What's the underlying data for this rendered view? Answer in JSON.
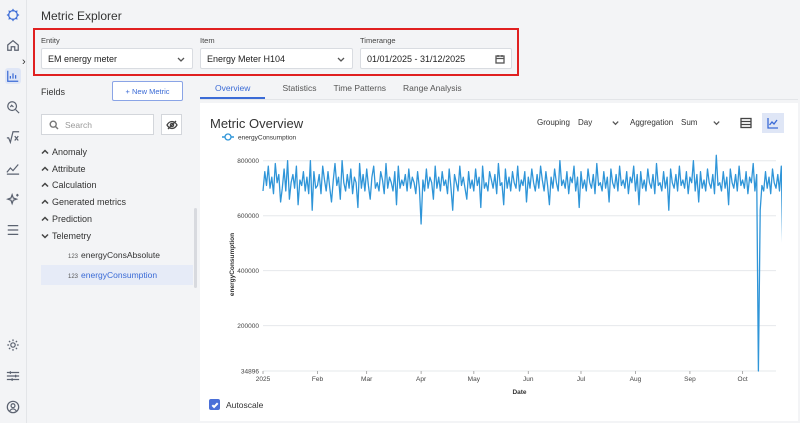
{
  "app": {
    "title": "Metric Explorer"
  },
  "rail": {
    "icons": [
      "logo-icon",
      "home-icon",
      "chart-icon",
      "search-chart-icon",
      "sqrt-icon",
      "trend-icon",
      "sparkle-icon",
      "menu-icon",
      "gear-icon",
      "sliders-icon",
      "user-icon"
    ]
  },
  "selectors": {
    "entity": {
      "label": "Entity",
      "value": "EM energy meter"
    },
    "item": {
      "label": "Item",
      "value": "Energy Meter H104"
    },
    "timerange": {
      "label": "Timerange",
      "value": "01/01/2025 - 31/12/2025"
    }
  },
  "fields": {
    "label": "Fields",
    "new_metric": "+ New Metric",
    "search_placeholder": "Search",
    "groups": [
      {
        "label": "Anomaly",
        "expanded": false
      },
      {
        "label": "Attribute",
        "expanded": false
      },
      {
        "label": "Calculation",
        "expanded": false
      },
      {
        "label": "Generated metrics",
        "expanded": false
      },
      {
        "label": "Prediction",
        "expanded": false
      },
      {
        "label": "Telemetry",
        "expanded": true
      }
    ],
    "telemetry_items": [
      {
        "type": "123",
        "label": "energyConsAbsolute",
        "selected": false
      },
      {
        "type": "123",
        "label": "energyConsumption",
        "selected": true
      }
    ]
  },
  "tabs": [
    {
      "label": "Overview",
      "active": true
    },
    {
      "label": "Statistics",
      "active": false
    },
    {
      "label": "Time Patterns",
      "active": false
    },
    {
      "label": "Range Analysis",
      "active": false
    }
  ],
  "chart_panel": {
    "title": "Metric Overview",
    "grouping_label": "Grouping",
    "grouping_value": "Day",
    "aggregation_label": "Aggregation",
    "aggregation_value": "Sum",
    "autoscale_label": "Autoscale",
    "autoscale_checked": true
  },
  "chart_data": {
    "type": "line",
    "title": "",
    "xlabel": "Date",
    "ylabel": "energyConsumption",
    "legend": [
      "energyConsumption"
    ],
    "legend_position": "top-left",
    "series_color": "#2f95d8",
    "x_ticks": [
      "2025",
      "Feb",
      "Mar",
      "Apr",
      "May",
      "Jun",
      "Jul",
      "Aug",
      "Sep",
      "Oct"
    ],
    "y_ticks": [
      "800000",
      "600000",
      "400000",
      "200000",
      "34896"
    ],
    "ylim": [
      34896,
      810000
    ],
    "x_range": [
      "2025-01-01",
      "2025-10-20"
    ],
    "grid": true,
    "series": [
      {
        "name": "energyConsumption",
        "daily_values_start": "2025-01-01",
        "values": [
          690000,
          760000,
          710000,
          780000,
          700000,
          740000,
          680000,
          790000,
          720000,
          750000,
          650000,
          700000,
          770000,
          690000,
          800000,
          660000,
          720000,
          750000,
          700000,
          780000,
          640000,
          730000,
          710000,
          760000,
          690000,
          740000,
          680000,
          800000,
          620000,
          760000,
          700000,
          710000,
          750000,
          680000,
          780000,
          730000,
          690000,
          760000,
          700000,
          650000,
          730000,
          790000,
          710000,
          740000,
          660000,
          800000,
          720000,
          690000,
          750000,
          700000,
          770000,
          680000,
          740000,
          720000,
          630000,
          790000,
          700000,
          750000,
          690000,
          770000,
          710000,
          660000,
          740000,
          780000,
          700000,
          720000,
          690000,
          760000,
          730000,
          680000,
          790000,
          700000,
          740000,
          720000,
          690000,
          760000,
          640000,
          780000,
          700000,
          730000,
          710000,
          750000,
          690000,
          770000,
          700000,
          740000,
          720000,
          680000,
          760000,
          700000,
          570000,
          730000,
          690000,
          770000,
          700000,
          740000,
          720000,
          660000,
          780000,
          700000,
          740000,
          690000,
          760000,
          710000,
          730000,
          680000,
          770000,
          700000,
          620000,
          750000,
          720000,
          690000,
          780000,
          710000,
          740000,
          700000,
          660000,
          760000,
          700000,
          730000,
          690000,
          770000,
          710000,
          740000,
          630000,
          780000,
          700000,
          720000,
          690000,
          760000,
          730000,
          700000,
          750000,
          680000,
          790000,
          710000,
          720000,
          640000,
          770000,
          700000,
          740000,
          690000,
          760000,
          720000,
          700000,
          780000,
          690000,
          730000,
          710000,
          760000,
          650000,
          740000,
          700000,
          770000,
          720000,
          690000,
          750000,
          700000,
          780000,
          730000,
          690000,
          760000,
          710000,
          640000,
          740000,
          700000,
          770000,
          720000,
          690000,
          800000,
          710000,
          730000,
          700000,
          760000,
          680000,
          740000,
          720000,
          780000,
          690000,
          740000,
          630000,
          760000,
          700000,
          730000,
          690000,
          770000,
          720000,
          700000,
          750000,
          680000,
          790000,
          710000,
          720000,
          690000,
          760000,
          700000,
          740000,
          650000,
          770000,
          720000,
          700000,
          750000,
          690000,
          780000,
          710000,
          730000,
          700000,
          760000,
          680000,
          740000,
          720000,
          780000,
          690000,
          750000,
          640000,
          760000,
          700000,
          730000,
          690000,
          770000,
          720000,
          700000,
          750000,
          680000,
          790000,
          710000,
          720000,
          690000,
          760000,
          700000,
          740000,
          620000,
          770000,
          720000,
          700000,
          750000,
          690000,
          780000,
          710000,
          730000,
          700000,
          760000,
          680000,
          740000,
          720000,
          800000,
          690000,
          750000,
          650000,
          760000,
          700000,
          730000,
          690000,
          770000,
          720000,
          700000,
          750000,
          680000,
          820000,
          710000,
          720000,
          690000,
          760000,
          700000,
          740000,
          640000,
          770000,
          720000,
          700000,
          750000,
          690000,
          780000,
          710000,
          730000,
          700000,
          760000,
          680000,
          740000,
          720000,
          790000,
          690000,
          750000,
          34896,
          620000,
          710000,
          690000,
          760000,
          700000,
          740000,
          680000,
          770000,
          720000,
          700000,
          750000,
          690000,
          780000,
          430000
        ]
      }
    ]
  }
}
